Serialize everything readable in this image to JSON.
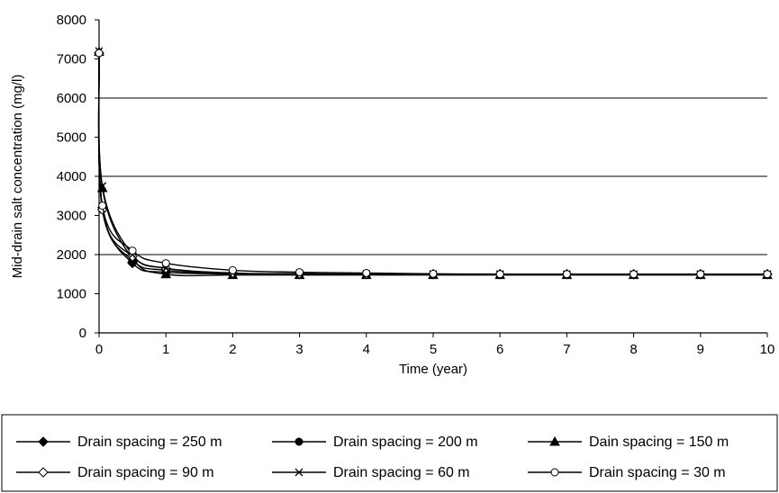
{
  "chart_data": {
    "type": "line",
    "title": "",
    "xlabel": "Time (year)",
    "ylabel": "Mid-drain salt concentration (mg/l)",
    "xlim": [
      0,
      10
    ],
    "ylim": [
      0,
      8000
    ],
    "x_ticks": [
      "0",
      "1",
      "2",
      "3",
      "4",
      "5",
      "6",
      "7",
      "8",
      "9",
      "10"
    ],
    "y_ticks": [
      "0",
      "1000",
      "2000",
      "3000",
      "4000",
      "5000",
      "6000",
      "7000",
      "8000"
    ],
    "grid": "horizontal at 2000, 4000, 6000",
    "legend_position": "bottom",
    "series": [
      {
        "name": "Drain spacing = 250 m",
        "marker": "filled-diamond",
        "x": [
          0,
          0.05,
          0.5,
          1,
          2,
          3,
          4,
          5,
          6,
          7,
          8,
          9,
          10
        ],
        "y": [
          7150,
          3200,
          1780,
          1550,
          1510,
          1500,
          1500,
          1500,
          1500,
          1500,
          1500,
          1500,
          1500
        ]
      },
      {
        "name": "Drain spacing = 200 m",
        "marker": "filled-circle",
        "x": [
          0,
          0.05,
          0.5,
          1,
          2,
          3,
          4,
          5,
          6,
          7,
          8,
          9,
          10
        ],
        "y": [
          7150,
          3150,
          1850,
          1600,
          1510,
          1500,
          1500,
          1500,
          1500,
          1500,
          1500,
          1500,
          1500
        ]
      },
      {
        "name": "Dain spacing = 150 m",
        "marker": "filled-triangle",
        "x": [
          0,
          0.05,
          0.5,
          1,
          2,
          3,
          4,
          5,
          6,
          7,
          8,
          9,
          10
        ],
        "y": [
          7180,
          3700,
          1900,
          1500,
          1480,
          1480,
          1480,
          1480,
          1480,
          1480,
          1480,
          1480,
          1480
        ]
      },
      {
        "name": "Drain spacing = 90 m",
        "marker": "open-diamond",
        "x": [
          0,
          0.05,
          0.5,
          1,
          2,
          3,
          4,
          5,
          6,
          7,
          8,
          9,
          10
        ],
        "y": [
          7150,
          3150,
          1950,
          1650,
          1530,
          1510,
          1500,
          1500,
          1500,
          1500,
          1500,
          1500,
          1500
        ]
      },
      {
        "name": "Drain spacing = 60 m",
        "marker": "cross",
        "x": [
          0,
          0.05,
          0.5,
          1,
          2,
          3,
          4,
          5,
          6,
          7,
          8,
          9,
          10
        ],
        "y": [
          7200,
          3750,
          2000,
          1650,
          1520,
          1510,
          1500,
          1500,
          1500,
          1500,
          1500,
          1500,
          1500
        ]
      },
      {
        "name": "Drain spacing = 30 m",
        "marker": "open-circle",
        "x": [
          0,
          0.05,
          0.5,
          1,
          2,
          3,
          4,
          5,
          6,
          7,
          8,
          9,
          10
        ],
        "y": [
          7150,
          3250,
          2100,
          1780,
          1600,
          1550,
          1530,
          1510,
          1500,
          1500,
          1500,
          1500,
          1500
        ]
      }
    ]
  }
}
